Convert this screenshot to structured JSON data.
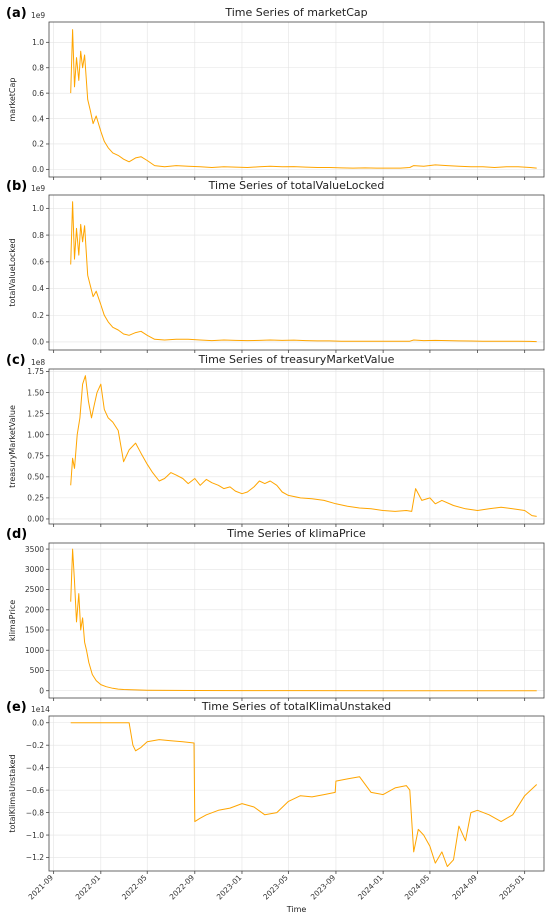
{
  "x_axis": {
    "label": "Time",
    "ticks": [
      "2021-09",
      "2022-01",
      "2022-05",
      "2022-09",
      "2023-01",
      "2023-05",
      "2023-09",
      "2024-01",
      "2024-05",
      "2024-09",
      "2025-01"
    ]
  },
  "line_color": "#FFA500",
  "chart_data": [
    {
      "type": "line",
      "letter": "(a)",
      "title": "Time Series of marketCap",
      "ylabel": "marketCap",
      "exp_label": "1e9",
      "scale": 1000000000.0,
      "ylim": [
        -0.06,
        1.16
      ],
      "yticks": [
        0.0,
        0.2,
        0.4,
        0.6,
        0.8,
        1.0
      ],
      "ytick_labels": [
        "0.0",
        "0.2",
        "0.4",
        "0.6",
        "0.8",
        "1.0"
      ],
      "x": [
        "2021-10-15",
        "2021-10-20",
        "2021-10-25",
        "2021-10-30",
        "2021-11-05",
        "2021-11-10",
        "2021-11-15",
        "2021-11-20",
        "2021-11-28",
        "2021-12-05",
        "2021-12-12",
        "2021-12-20",
        "2022-01-01",
        "2022-01-10",
        "2022-01-20",
        "2022-02-01",
        "2022-02-15",
        "2022-03-01",
        "2022-03-15",
        "2022-04-01",
        "2022-04-15",
        "2022-05-01",
        "2022-05-20",
        "2022-06-15",
        "2022-07-15",
        "2022-08-15",
        "2022-09-15",
        "2022-10-15",
        "2022-11-15",
        "2022-12-15",
        "2023-01-15",
        "2023-02-15",
        "2023-03-15",
        "2023-04-15",
        "2023-05-15",
        "2023-06-15",
        "2023-07-15",
        "2023-08-15",
        "2023-09-15",
        "2023-10-15",
        "2023-11-15",
        "2023-12-15",
        "2024-01-15",
        "2024-02-15",
        "2024-03-10",
        "2024-03-20",
        "2024-04-15",
        "2024-05-15",
        "2024-06-15",
        "2024-07-15",
        "2024-08-15",
        "2024-09-15",
        "2024-10-15",
        "2024-11-15",
        "2024-12-15",
        "2025-01-15",
        "2025-02-01"
      ],
      "values": [
        0.6,
        1.1,
        0.65,
        0.88,
        0.7,
        0.93,
        0.8,
        0.9,
        0.55,
        0.46,
        0.36,
        0.42,
        0.3,
        0.22,
        0.17,
        0.13,
        0.11,
        0.08,
        0.06,
        0.09,
        0.1,
        0.07,
        0.03,
        0.02,
        0.03,
        0.025,
        0.02,
        0.015,
        0.02,
        0.018,
        0.015,
        0.02,
        0.025,
        0.02,
        0.022,
        0.018,
        0.015,
        0.015,
        0.012,
        0.01,
        0.012,
        0.01,
        0.01,
        0.01,
        0.015,
        0.03,
        0.025,
        0.035,
        0.03,
        0.025,
        0.02,
        0.02,
        0.015,
        0.02,
        0.02,
        0.015,
        0.01
      ]
    },
    {
      "type": "line",
      "letter": "(b)",
      "title": "Time Series of totalValueLocked",
      "ylabel": "totalValueLocked",
      "exp_label": "1e9",
      "scale": 1000000000.0,
      "ylim": [
        -0.06,
        1.1
      ],
      "yticks": [
        0.0,
        0.2,
        0.4,
        0.6,
        0.8,
        1.0
      ],
      "ytick_labels": [
        "0.0",
        "0.2",
        "0.4",
        "0.6",
        "0.8",
        "1.0"
      ],
      "x": [
        "2021-10-15",
        "2021-10-20",
        "2021-10-25",
        "2021-10-30",
        "2021-11-05",
        "2021-11-10",
        "2021-11-15",
        "2021-11-20",
        "2021-11-28",
        "2021-12-05",
        "2021-12-12",
        "2021-12-20",
        "2022-01-01",
        "2022-01-10",
        "2022-01-20",
        "2022-02-01",
        "2022-02-15",
        "2022-03-01",
        "2022-03-15",
        "2022-04-01",
        "2022-04-15",
        "2022-05-01",
        "2022-05-20",
        "2022-06-15",
        "2022-07-15",
        "2022-08-15",
        "2022-09-15",
        "2022-10-15",
        "2022-11-15",
        "2022-12-15",
        "2023-01-15",
        "2023-02-15",
        "2023-03-15",
        "2023-04-15",
        "2023-05-15",
        "2023-06-15",
        "2023-07-15",
        "2023-08-15",
        "2023-09-15",
        "2023-10-15",
        "2023-11-15",
        "2023-12-15",
        "2024-01-15",
        "2024-02-15",
        "2024-03-10",
        "2024-03-20",
        "2024-04-15",
        "2024-05-15",
        "2024-06-15",
        "2024-07-15",
        "2024-08-15",
        "2024-09-15",
        "2024-10-15",
        "2024-11-15",
        "2024-12-15",
        "2025-01-15",
        "2025-02-01"
      ],
      "values": [
        0.58,
        1.05,
        0.62,
        0.85,
        0.65,
        0.88,
        0.75,
        0.87,
        0.5,
        0.42,
        0.34,
        0.38,
        0.28,
        0.2,
        0.15,
        0.11,
        0.09,
        0.06,
        0.05,
        0.07,
        0.08,
        0.05,
        0.02,
        0.015,
        0.02,
        0.02,
        0.015,
        0.01,
        0.015,
        0.012,
        0.01,
        0.012,
        0.015,
        0.012,
        0.014,
        0.01,
        0.008,
        0.008,
        0.006,
        0.005,
        0.006,
        0.005,
        0.005,
        0.005,
        0.006,
        0.015,
        0.01,
        0.012,
        0.01,
        0.008,
        0.007,
        0.006,
        0.005,
        0.005,
        0.005,
        0.004,
        0.003
      ]
    },
    {
      "type": "line",
      "letter": "(c)",
      "title": "Time Series of treasuryMarketValue",
      "ylabel": "treasuryMarketValue",
      "exp_label": "1e8",
      "scale": 100000000.0,
      "ylim": [
        -0.06,
        1.78
      ],
      "yticks": [
        0.0,
        0.25,
        0.5,
        0.75,
        1.0,
        1.25,
        1.5,
        1.75
      ],
      "ytick_labels": [
        "0.00",
        "0.25",
        "0.50",
        "0.75",
        "1.00",
        "1.25",
        "1.50",
        "1.75"
      ],
      "x": [
        "2021-10-15",
        "2021-10-20",
        "2021-10-25",
        "2021-11-01",
        "2021-11-08",
        "2021-11-15",
        "2021-11-22",
        "2021-11-30",
        "2021-12-08",
        "2021-12-15",
        "2021-12-22",
        "2022-01-01",
        "2022-01-10",
        "2022-01-20",
        "2022-02-01",
        "2022-02-15",
        "2022-03-01",
        "2022-03-15",
        "2022-04-01",
        "2022-04-15",
        "2022-05-01",
        "2022-05-15",
        "2022-06-01",
        "2022-06-15",
        "2022-07-01",
        "2022-07-15",
        "2022-08-01",
        "2022-08-15",
        "2022-09-01",
        "2022-09-15",
        "2022-10-01",
        "2022-10-15",
        "2022-11-01",
        "2022-11-15",
        "2022-12-01",
        "2022-12-15",
        "2023-01-01",
        "2023-01-15",
        "2023-02-01",
        "2023-02-15",
        "2023-03-01",
        "2023-03-15",
        "2023-04-01",
        "2023-04-15",
        "2023-05-01",
        "2023-06-01",
        "2023-07-01",
        "2023-08-01",
        "2023-09-01",
        "2023-10-01",
        "2023-11-01",
        "2023-12-01",
        "2024-01-01",
        "2024-02-01",
        "2024-03-01",
        "2024-03-15",
        "2024-03-25",
        "2024-04-10",
        "2024-05-01",
        "2024-05-15",
        "2024-06-01",
        "2024-07-01",
        "2024-08-01",
        "2024-09-01",
        "2024-10-01",
        "2024-11-01",
        "2024-12-01",
        "2025-01-01",
        "2025-01-20",
        "2025-02-01"
      ],
      "values": [
        0.4,
        0.72,
        0.6,
        1.0,
        1.2,
        1.6,
        1.7,
        1.4,
        1.2,
        1.35,
        1.5,
        1.6,
        1.3,
        1.2,
        1.15,
        1.05,
        0.68,
        0.82,
        0.9,
        0.78,
        0.65,
        0.55,
        0.45,
        0.48,
        0.55,
        0.52,
        0.48,
        0.42,
        0.48,
        0.4,
        0.47,
        0.43,
        0.4,
        0.36,
        0.38,
        0.33,
        0.3,
        0.32,
        0.38,
        0.45,
        0.42,
        0.45,
        0.4,
        0.32,
        0.28,
        0.25,
        0.24,
        0.22,
        0.18,
        0.15,
        0.13,
        0.12,
        0.1,
        0.09,
        0.1,
        0.09,
        0.36,
        0.22,
        0.25,
        0.18,
        0.22,
        0.16,
        0.12,
        0.1,
        0.12,
        0.14,
        0.12,
        0.1,
        0.04,
        0.03
      ]
    },
    {
      "type": "line",
      "letter": "(d)",
      "title": "Time Series of klimaPrice",
      "ylabel": "klimaPrice",
      "exp_label": "",
      "scale": 1,
      "ylim": [
        -180,
        3650
      ],
      "yticks": [
        0,
        500,
        1000,
        1500,
        2000,
        2500,
        3000,
        3500
      ],
      "ytick_labels": [
        "0",
        "500",
        "1000",
        "1500",
        "2000",
        "2500",
        "3000",
        "3500"
      ],
      "x": [
        "2021-10-15",
        "2021-10-20",
        "2021-10-25",
        "2021-10-30",
        "2021-11-05",
        "2021-11-10",
        "2021-11-15",
        "2021-11-20",
        "2021-11-25",
        "2021-12-01",
        "2021-12-10",
        "2021-12-20",
        "2022-01-01",
        "2022-01-15",
        "2022-02-01",
        "2022-02-15",
        "2022-03-01",
        "2022-04-01",
        "2022-05-01",
        "2022-07-01",
        "2022-09-01",
        "2023-01-01",
        "2023-06-01",
        "2024-01-01",
        "2024-06-01",
        "2025-01-01",
        "2025-02-01"
      ],
      "values": [
        2200,
        3500,
        2700,
        1700,
        2400,
        1500,
        1800,
        1200,
        1000,
        700,
        400,
        250,
        150,
        100,
        60,
        40,
        30,
        20,
        12,
        8,
        5,
        3,
        2,
        1,
        1,
        1,
        1
      ]
    },
    {
      "type": "line",
      "letter": "(e)",
      "title": "Time Series of totalKlimaUnstaked",
      "ylabel": "totalKlimaUnstaked",
      "exp_label": "1e14",
      "scale": 100000000000000.0,
      "ylim": [
        -1.32,
        0.06
      ],
      "yticks": [
        0.0,
        -0.2,
        -0.4,
        -0.6,
        -0.8,
        -1.0,
        -1.2
      ],
      "ytick_labels": [
        "0.0",
        "−0.2",
        "−0.4",
        "−0.6",
        "−0.8",
        "−1.0",
        "−1.2"
      ],
      "x": [
        "2021-10-15",
        "2022-03-15",
        "2022-03-25",
        "2022-04-01",
        "2022-04-15",
        "2022-05-01",
        "2022-06-01",
        "2022-07-01",
        "2022-08-01",
        "2022-08-30",
        "2022-09-01",
        "2022-09-15",
        "2022-10-01",
        "2022-11-01",
        "2022-12-01",
        "2023-01-01",
        "2023-02-01",
        "2023-03-01",
        "2023-04-01",
        "2023-05-01",
        "2023-06-01",
        "2023-07-01",
        "2023-08-01",
        "2023-08-30",
        "2023-09-01",
        "2023-10-01",
        "2023-11-01",
        "2023-12-01",
        "2024-01-01",
        "2024-02-01",
        "2024-03-01",
        "2024-03-10",
        "2024-03-20",
        "2024-04-01",
        "2024-04-15",
        "2024-05-01",
        "2024-05-15",
        "2024-06-01",
        "2024-06-15",
        "2024-07-01",
        "2024-07-15",
        "2024-08-01",
        "2024-08-15",
        "2024-09-01",
        "2024-10-01",
        "2024-11-01",
        "2024-12-01",
        "2025-01-01",
        "2025-02-01"
      ],
      "values": [
        0.0,
        0.0,
        -0.2,
        -0.25,
        -0.22,
        -0.17,
        -0.15,
        -0.16,
        -0.17,
        -0.18,
        -0.88,
        -0.85,
        -0.82,
        -0.78,
        -0.76,
        -0.72,
        -0.75,
        -0.82,
        -0.8,
        -0.7,
        -0.65,
        -0.66,
        -0.64,
        -0.62,
        -0.52,
        -0.5,
        -0.48,
        -0.62,
        -0.64,
        -0.58,
        -0.56,
        -0.6,
        -1.15,
        -0.95,
        -1.0,
        -1.1,
        -1.25,
        -1.15,
        -1.28,
        -1.22,
        -0.92,
        -1.05,
        -0.8,
        -0.78,
        -0.82,
        -0.88,
        -0.82,
        -0.65,
        -0.55
      ]
    }
  ]
}
